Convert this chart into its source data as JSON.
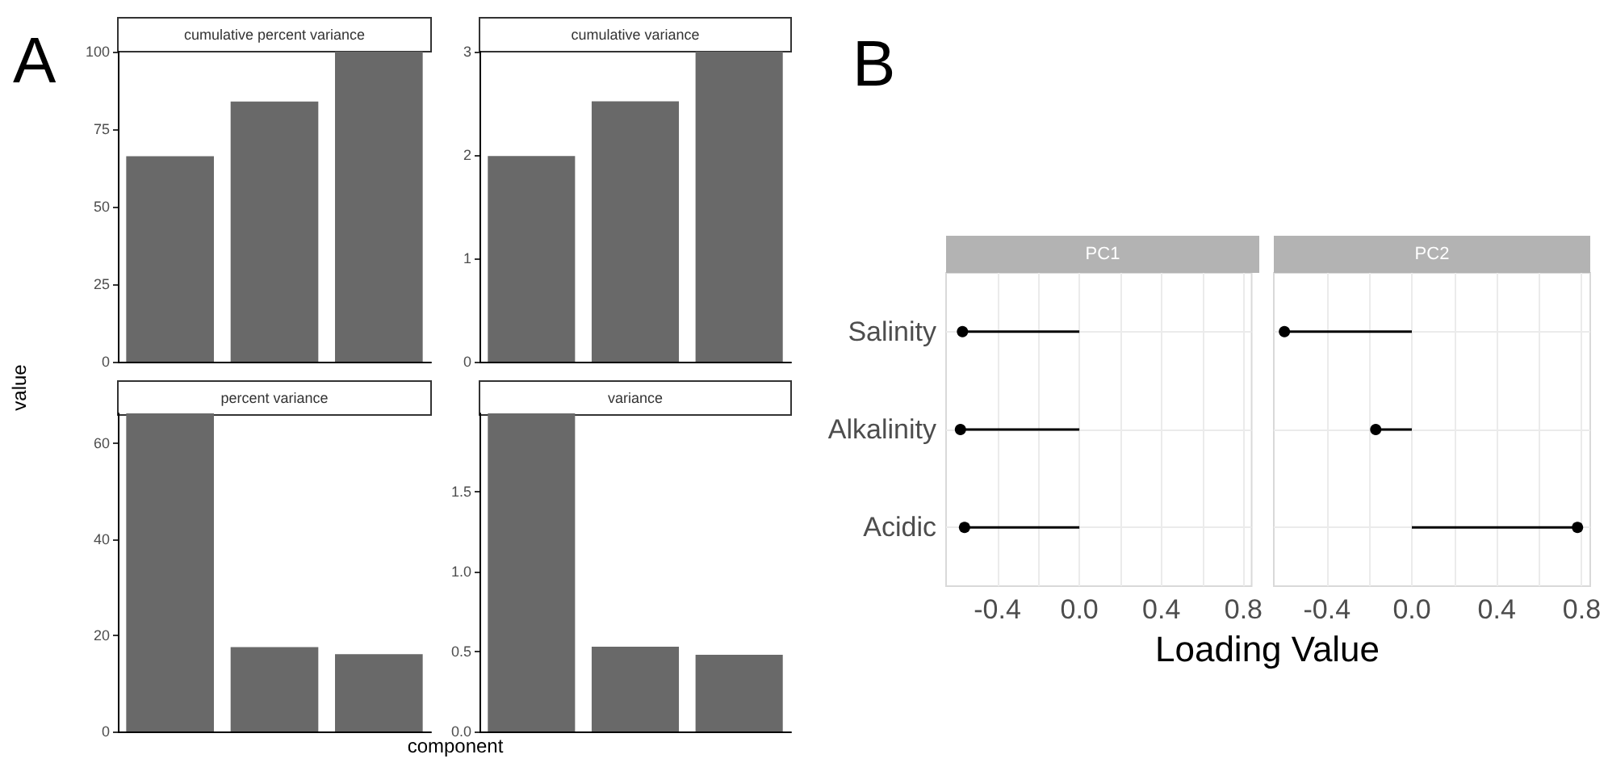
{
  "chart_data": [
    {
      "type": "bar",
      "title": "cumulative percent variance",
      "annotations": [
        "A"
      ],
      "categories": [
        null,
        null,
        null
      ],
      "values": [
        66.3,
        83.9,
        100
      ],
      "color": "#696969",
      "ylim": [
        0,
        100
      ],
      "yticks": [
        0,
        25,
        50,
        75,
        100
      ],
      "grid": false
    },
    {
      "type": "bar",
      "title": "cumulative variance",
      "categories": [
        null,
        null,
        null
      ],
      "values": [
        1.99,
        2.52,
        3
      ],
      "color": "#696969",
      "ylim": [
        0,
        3
      ],
      "yticks": [
        0,
        1,
        2,
        3
      ],
      "grid": false
    },
    {
      "type": "bar",
      "title": "percent variance",
      "ylabel": "value",
      "categories": [
        null,
        null,
        null
      ],
      "values": [
        66.3,
        17.6,
        16.1
      ],
      "color": "#696969",
      "ylim": [
        0,
        66.3
      ],
      "yticks": [
        0,
        20,
        40,
        60
      ],
      "grid": false
    },
    {
      "type": "bar",
      "title": "variance",
      "xlabel": "component",
      "categories": [
        null,
        null,
        null
      ],
      "values": [
        1.99,
        0.53,
        0.48
      ],
      "color": "#696969",
      "ylim": [
        0,
        1.99
      ],
      "yticks": [
        {
          "value": 0,
          "label": "0.0"
        },
        {
          "value": 0.5,
          "label": "0.5"
        },
        {
          "value": 1,
          "label": "1.0"
        },
        {
          "value": 1.5,
          "label": "1.5"
        }
      ],
      "grid": false
    },
    {
      "type": "lollipop",
      "orientation": "horizontal",
      "title": "PC1",
      "annotations": [
        "B"
      ],
      "categories": [
        "Salinity",
        "Alkalinity",
        "Acidic"
      ],
      "values": [
        -0.57,
        -0.58,
        -0.56
      ],
      "color": "#000000",
      "xlim": [
        -0.65,
        0.84
      ],
      "xticks": [
        {
          "value": -0.4,
          "label": "-0.4"
        },
        {
          "value": -0.2,
          "label": null
        },
        {
          "value": 0,
          "label": "0.0"
        },
        {
          "value": 0.2,
          "label": null
        },
        {
          "value": 0.4,
          "label": "0.4"
        },
        {
          "value": 0.6,
          "label": null
        },
        {
          "value": 0.8,
          "label": "0.8"
        }
      ],
      "grid": true,
      "marker": "circle"
    },
    {
      "type": "lollipop",
      "orientation": "horizontal",
      "title": "PC2",
      "xlabel": "Loading Value",
      "categories": [
        null,
        null,
        null
      ],
      "values": [
        -0.6,
        -0.17,
        0.78
      ],
      "color": "#000000",
      "xlim": [
        -0.65,
        0.84
      ],
      "xticks": [
        {
          "value": -0.4,
          "label": "-0.4"
        },
        {
          "value": -0.2,
          "label": null
        },
        {
          "value": 0,
          "label": "0.0"
        },
        {
          "value": 0.2,
          "label": null
        },
        {
          "value": 0.4,
          "label": "0.4"
        },
        {
          "value": 0.6,
          "label": null
        },
        {
          "value": 0.8,
          "label": "0.8"
        }
      ],
      "grid": true,
      "marker": "circle",
      "tick_labels": "x"
    }
  ]
}
